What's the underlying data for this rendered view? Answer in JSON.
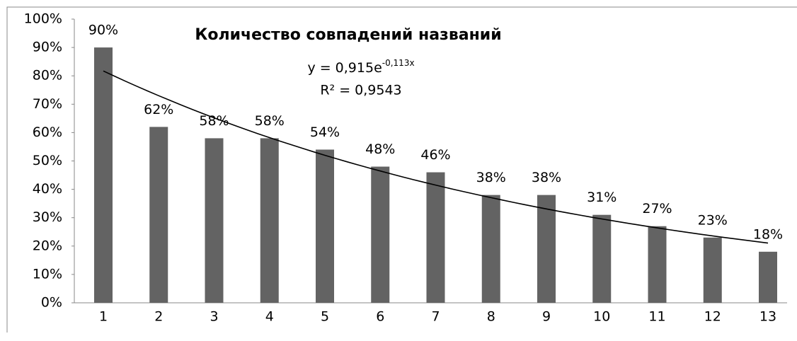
{
  "chart_data": {
    "type": "bar",
    "title": "Количество совпадений названий",
    "categories": [
      1,
      2,
      3,
      4,
      5,
      6,
      7,
      8,
      9,
      10,
      11,
      12,
      13
    ],
    "values": [
      0.9,
      0.62,
      0.58,
      0.58,
      0.54,
      0.48,
      0.46,
      0.38,
      0.38,
      0.31,
      0.27,
      0.23,
      0.18
    ],
    "value_labels": [
      "90%",
      "62%",
      "58%",
      "58%",
      "54%",
      "48%",
      "46%",
      "38%",
      "38%",
      "31%",
      "27%",
      "23%",
      "18%"
    ],
    "color": "#636363",
    "ylim": [
      0,
      1
    ],
    "yticks": [
      {
        "value": 0,
        "label": "0%"
      },
      {
        "value": 0.1,
        "label": "10%"
      },
      {
        "value": 0.2,
        "label": "20%"
      },
      {
        "value": 0.3,
        "label": "30%"
      },
      {
        "value": 0.4,
        "label": "40%"
      },
      {
        "value": 0.5,
        "label": "50%"
      },
      {
        "value": 0.6,
        "label": "60%"
      },
      {
        "value": 0.7,
        "label": "70%"
      },
      {
        "value": 0.8,
        "label": "80%"
      },
      {
        "value": 0.9,
        "label": "90%"
      },
      {
        "value": 1,
        "label": "100%"
      }
    ],
    "grid": false,
    "trendline": {
      "type": "exponential",
      "a": 0.915,
      "b": -0.113,
      "equation": "y = 0,915e",
      "exponent": "-0,113x",
      "r2": "R² = 0,9543"
    }
  }
}
